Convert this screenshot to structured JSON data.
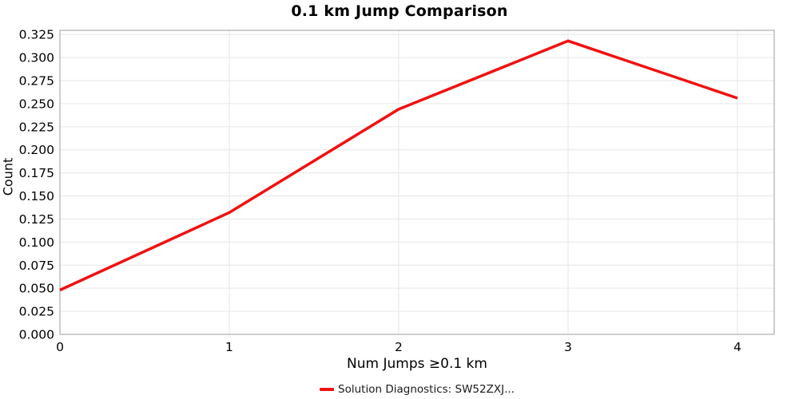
{
  "chart_data": {
    "type": "line",
    "title": "0.1 km Jump Comparison",
    "xlabel": "Num Jumps ≥0.1 km",
    "ylabel": "Count",
    "x": [
      0,
      1,
      2,
      3,
      4
    ],
    "series": [
      {
        "name": "Solution Diagnostics: SW52ZXJ...",
        "color": "#f01111",
        "values": [
          0.048,
          0.132,
          0.244,
          0.318,
          0.256
        ]
      }
    ],
    "x_ticks": [
      0,
      1,
      2,
      3,
      4
    ],
    "y_ticks": [
      0.0,
      0.025,
      0.05,
      0.075,
      0.1,
      0.125,
      0.15,
      0.175,
      0.2,
      0.225,
      0.25,
      0.275,
      0.3,
      0.325
    ],
    "xlim": [
      0,
      4.217
    ],
    "ylim": [
      0,
      0.3295
    ],
    "grid": true,
    "legend_position": "bottom-center",
    "colors": {
      "gridline": "#e6e6e6",
      "panel_border": "#9e9e9e",
      "tick_text": "#000000"
    }
  }
}
